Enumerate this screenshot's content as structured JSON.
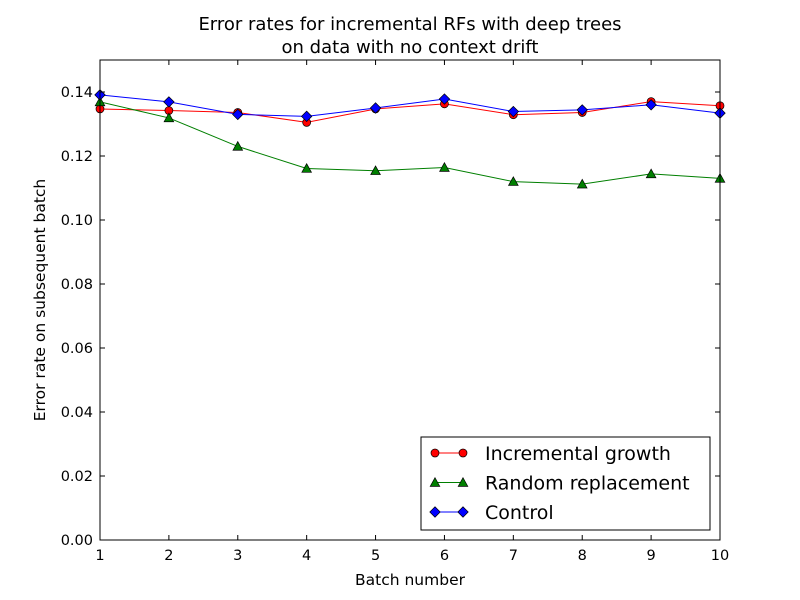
{
  "chart_data": {
    "type": "line",
    "title_line1": "Error rates for incremental RFs with deep trees",
    "title_line2": "on data with no context drift",
    "xlabel": "Batch number",
    "ylabel": "Error rate on subsequent batch",
    "x": [
      1,
      2,
      3,
      4,
      5,
      6,
      7,
      8,
      9,
      10
    ],
    "xlim": [
      1,
      10
    ],
    "ylim": [
      0,
      0.15
    ],
    "xticks": [
      1,
      2,
      3,
      4,
      5,
      6,
      7,
      8,
      9,
      10
    ],
    "yticks": [
      0.0,
      0.02,
      0.04,
      0.06,
      0.08,
      0.1,
      0.12,
      0.14
    ],
    "ytick_labels": [
      "0.00",
      "0.02",
      "0.04",
      "0.06",
      "0.08",
      "0.10",
      "0.12",
      "0.14"
    ],
    "grid": false,
    "legend_position": "lower-right",
    "series": [
      {
        "name": "Incremental growth",
        "color": "#ff0000",
        "marker": "circle",
        "values": [
          0.1347,
          0.1342,
          0.1336,
          0.1305,
          0.1347,
          0.1363,
          0.1329,
          0.1336,
          0.137,
          0.1357
        ]
      },
      {
        "name": "Random replacement",
        "color": "#007f00",
        "marker": "triangle",
        "values": [
          0.1369,
          0.1319,
          0.123,
          0.1161,
          0.1154,
          0.1164,
          0.112,
          0.1112,
          0.1144,
          0.113
        ]
      },
      {
        "name": "Control",
        "color": "#0000ff",
        "marker": "diamond",
        "values": [
          0.1391,
          0.1369,
          0.133,
          0.1324,
          0.135,
          0.1378,
          0.1339,
          0.1344,
          0.136,
          0.1334
        ]
      }
    ]
  }
}
